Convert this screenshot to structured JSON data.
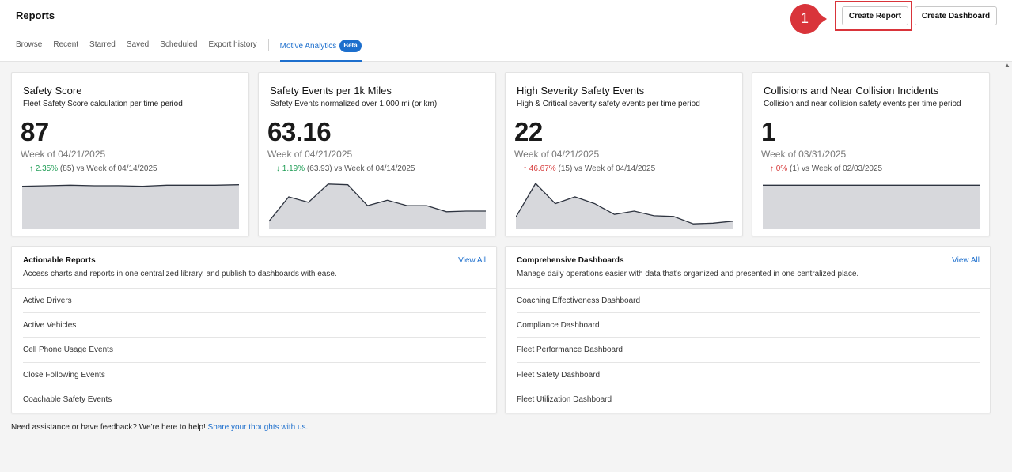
{
  "header": {
    "title": "Reports",
    "tabs": [
      {
        "label": "Browse"
      },
      {
        "label": "Recent"
      },
      {
        "label": "Starred"
      },
      {
        "label": "Saved"
      },
      {
        "label": "Scheduled"
      },
      {
        "label": "Export history"
      }
    ],
    "active_tab": {
      "label": "Motive Analytics",
      "badge": "Beta"
    },
    "create_report_label": "Create Report",
    "create_dashboard_label": "Create Dashboard",
    "step_number": "1",
    "accent_color": "#1d6fcd",
    "highlight_color": "#d9343a"
  },
  "metrics": [
    {
      "title": "Safety Score",
      "subtitle": "Fleet Safety Score calculation per time period",
      "value": "87",
      "week": "Week of 04/21/2025",
      "delta_arrow": "↑",
      "delta_pct": "2.35%",
      "delta_rest": "(85) vs Week of 04/14/2025",
      "trend": [
        85,
        86,
        87,
        86,
        86,
        85,
        87,
        87,
        87,
        88
      ]
    },
    {
      "title": "Safety Events per 1k Miles",
      "subtitle": "Safety Events normalized over 1,000 mi (or km)",
      "value": "63.16",
      "week": "Week of 04/21/2025",
      "delta_arrow": "↓",
      "delta_pct": "1.19%",
      "delta_rest": "(63.93) vs Week of 04/14/2025",
      "trend": [
        12,
        48,
        40,
        67,
        66,
        35,
        43,
        35,
        35,
        26,
        27,
        27
      ]
    },
    {
      "title": "High Severity Safety Events",
      "subtitle": "High & Critical severity safety events per time period",
      "value": "22",
      "week": "Week of 04/21/2025",
      "delta_arrow": "↑",
      "delta_pct": "46.67%",
      "delta_rest": "(15) vs Week of 04/14/2025",
      "trend": [
        18,
        68,
        38,
        48,
        38,
        22,
        27,
        20,
        19,
        8,
        9,
        12
      ]
    },
    {
      "title": "Collisions and Near Collision Incidents",
      "subtitle": "Collision and near collision safety events per time period",
      "value": "1",
      "week": "Week of 03/31/2025",
      "delta_arrow": "↑",
      "delta_pct": "0%",
      "delta_rest": "(1) vs Week of 02/03/2025",
      "trend": [
        1,
        1,
        1,
        1,
        1,
        1,
        1,
        1,
        1,
        1
      ]
    }
  ],
  "reports": {
    "title": "Actionable Reports",
    "subtitle": "Access charts and reports in one centralized library, and publish to dashboards with ease.",
    "view_all": "View All",
    "items": [
      "Active Drivers",
      "Active Vehicles",
      "Cell Phone Usage Events",
      "Close Following Events",
      "Coachable Safety Events"
    ]
  },
  "dashboards": {
    "title": "Comprehensive Dashboards",
    "subtitle": "Manage daily operations easier with data that's organized and presented in one centralized place.",
    "view_all": "View All",
    "items": [
      "Coaching Effectiveness Dashboard",
      "Compliance Dashboard",
      "Fleet Performance Dashboard",
      "Fleet Safety Dashboard",
      "Fleet Utilization Dashboard"
    ]
  },
  "footer": {
    "text": "Need assistance or have feedback? We're here to help!",
    "link": "Share your thoughts with us."
  }
}
